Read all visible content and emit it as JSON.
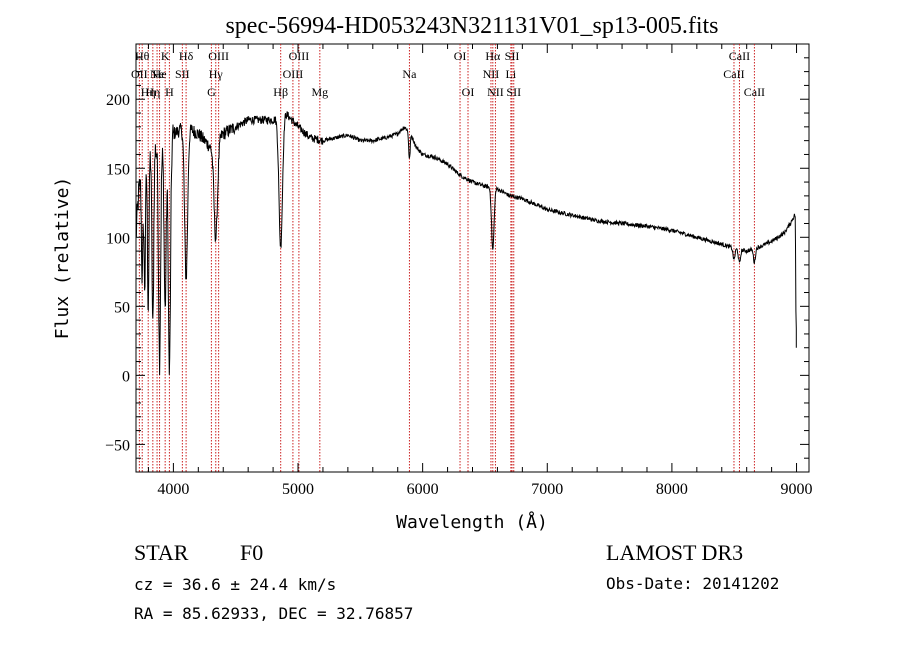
{
  "chart_data": {
    "type": "line",
    "title": "spec-56994-HD053243N321131V01_sp13-005.fits",
    "xlabel": "Wavelength (Å)",
    "ylabel": "Flux (relative)",
    "xlim": [
      3700,
      9100
    ],
    "ylim": [
      -70,
      240
    ],
    "xticks": [
      {
        "value": 4000,
        "label": "4000"
      },
      {
        "value": 5000,
        "label": "5000"
      },
      {
        "value": 6000,
        "label": "6000"
      },
      {
        "value": 7000,
        "label": "7000"
      },
      {
        "value": 8000,
        "label": "8000"
      },
      {
        "value": 9000,
        "label": "9000"
      }
    ],
    "yticks": [
      {
        "value": -50,
        "label": "−50"
      },
      {
        "value": 0,
        "label": "0"
      },
      {
        "value": 50,
        "label": "50"
      },
      {
        "value": 100,
        "label": "100"
      },
      {
        "value": 150,
        "label": "150"
      },
      {
        "value": 200,
        "label": "200"
      }
    ],
    "lines_color": "#cc2222",
    "spectral_lines": [
      {
        "wavelength": 3727,
        "label": "OII",
        "row": 1
      },
      {
        "wavelength": 3750,
        "label": "Hθ",
        "row": 0
      },
      {
        "wavelength": 3798,
        "label": "Hη",
        "row": 2
      },
      {
        "wavelength": 3835,
        "label": "Hη",
        "row": 2
      },
      {
        "wavelength": 3869,
        "label": "Ne",
        "row": 1
      },
      {
        "wavelength": 3889,
        "label": "He",
        "row": 1
      },
      {
        "wavelength": 3934,
        "label": "K",
        "row": 0
      },
      {
        "wavelength": 3968,
        "label": "H",
        "row": 2
      },
      {
        "wavelength": 4072,
        "label": "SII",
        "row": 1
      },
      {
        "wavelength": 4102,
        "label": "Hδ",
        "row": 0
      },
      {
        "wavelength": 4305,
        "label": "G",
        "row": 2
      },
      {
        "wavelength": 4340,
        "label": "Hγ",
        "row": 1
      },
      {
        "wavelength": 4363,
        "label": "OIII",
        "row": 0
      },
      {
        "wavelength": 4861,
        "label": "Hβ",
        "row": 2
      },
      {
        "wavelength": 4959,
        "label": "OIII",
        "row": 1
      },
      {
        "wavelength": 5007,
        "label": "OIII",
        "row": 0
      },
      {
        "wavelength": 5175,
        "label": "Mg",
        "row": 2
      },
      {
        "wavelength": 5894,
        "label": "Na",
        "row": 1
      },
      {
        "wavelength": 6300,
        "label": "OI",
        "row": 0
      },
      {
        "wavelength": 6364,
        "label": "OI",
        "row": 2
      },
      {
        "wavelength": 6548,
        "label": "NII",
        "row": 1
      },
      {
        "wavelength": 6563,
        "label": "Hα",
        "row": 0
      },
      {
        "wavelength": 6584,
        "label": "NII",
        "row": 2
      },
      {
        "wavelength": 6717,
        "label": "SII",
        "row": 0
      },
      {
        "wavelength": 6708,
        "label": "Li",
        "row": 1
      },
      {
        "wavelength": 6731,
        "label": "SII",
        "row": 2
      },
      {
        "wavelength": 8498,
        "label": "CaII",
        "row": 1
      },
      {
        "wavelength": 8542,
        "label": "CaII",
        "row": 0
      },
      {
        "wavelength": 8662,
        "label": "CaII",
        "row": 2
      }
    ],
    "spectrum_anchors": [
      [
        3700,
        100
      ],
      [
        3720,
        130
      ],
      [
        3750,
        150
      ],
      [
        3800,
        160
      ],
      [
        3850,
        165
      ],
      [
        3900,
        160
      ],
      [
        3950,
        170
      ],
      [
        4000,
        175
      ],
      [
        4100,
        180
      ],
      [
        4200,
        175
      ],
      [
        4300,
        165
      ],
      [
        4400,
        175
      ],
      [
        4500,
        180
      ],
      [
        4600,
        185
      ],
      [
        4700,
        185
      ],
      [
        4800,
        185
      ],
      [
        4900,
        190
      ],
      [
        5000,
        180
      ],
      [
        5100,
        172
      ],
      [
        5200,
        170
      ],
      [
        5300,
        172
      ],
      [
        5400,
        174
      ],
      [
        5500,
        170
      ],
      [
        5600,
        170
      ],
      [
        5700,
        172
      ],
      [
        5800,
        175
      ],
      [
        5850,
        180
      ],
      [
        5900,
        176
      ],
      [
        5950,
        165
      ],
      [
        6000,
        160
      ],
      [
        6100,
        158
      ],
      [
        6200,
        153
      ],
      [
        6300,
        145
      ],
      [
        6400,
        140
      ],
      [
        6500,
        137
      ],
      [
        6600,
        135
      ],
      [
        6700,
        130
      ],
      [
        6800,
        128
      ],
      [
        6900,
        124
      ],
      [
        7000,
        120
      ],
      [
        7200,
        116
      ],
      [
        7400,
        112
      ],
      [
        7600,
        110
      ],
      [
        7800,
        108
      ],
      [
        8000,
        105
      ],
      [
        8200,
        100
      ],
      [
        8400,
        95
      ],
      [
        8500,
        92
      ],
      [
        8600,
        90
      ],
      [
        8700,
        93
      ],
      [
        8800,
        97
      ],
      [
        8900,
        103
      ],
      [
        8950,
        110
      ],
      [
        8995,
        118
      ]
    ],
    "absorption_features": [
      {
        "center": 3750,
        "depth": 80,
        "width": 6
      },
      {
        "center": 3770,
        "depth": 90,
        "width": 6
      },
      {
        "center": 3798,
        "depth": 110,
        "width": 6
      },
      {
        "center": 3835,
        "depth": 130,
        "width": 7
      },
      {
        "center": 3889,
        "depth": 150,
        "width": 8
      },
      {
        "center": 3934,
        "depth": 120,
        "width": 8
      },
      {
        "center": 3968,
        "depth": 170,
        "width": 9
      },
      {
        "center": 4102,
        "depth": 110,
        "width": 12
      },
      {
        "center": 4340,
        "depth": 70,
        "width": 14
      },
      {
        "center": 4861,
        "depth": 95,
        "width": 14
      },
      {
        "center": 5894,
        "depth": 20,
        "width": 6
      },
      {
        "center": 6563,
        "depth": 45,
        "width": 10
      },
      {
        "center": 8498,
        "depth": 8,
        "width": 8
      },
      {
        "center": 8542,
        "depth": 10,
        "width": 8
      },
      {
        "center": 8662,
        "depth": 10,
        "width": 8
      },
      {
        "center": 8997,
        "depth": 90,
        "width": 3
      }
    ]
  },
  "info": {
    "object_class": "STAR",
    "subclass": "F0",
    "redshift_text": "cz =  36.6 ± 24.4 km/s",
    "coords_text": "RA =  85.62933, DEC =  32.76857",
    "survey": "LAMOST DR3",
    "obs_date": "Obs-Date: 20141202"
  }
}
